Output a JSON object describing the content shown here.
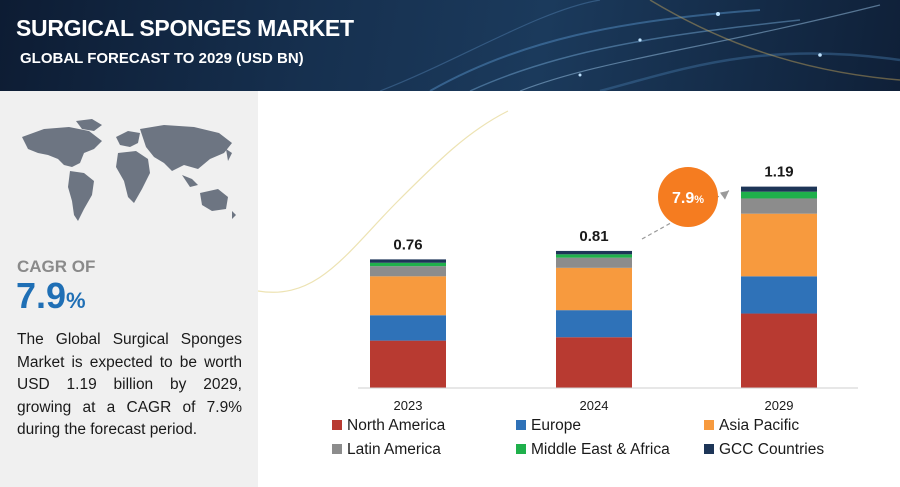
{
  "header": {
    "title": "SURGICAL SPONGES MARKET",
    "subtitle": "GLOBAL FORECAST TO 2029 (USD BN)"
  },
  "summary": {
    "cagr_label": "CAGR OF",
    "cagr_value": "7.9",
    "cagr_unit": "%",
    "description": "The Global Surgical Sponges Market is expected to be worth USD 1.19 billion by 2029, growing at a CAGR of 7.9% during the forecast period."
  },
  "chart_data": {
    "type": "bar",
    "stacked": true,
    "categories": [
      "2023",
      "2024",
      "2029"
    ],
    "totals": [
      "0.76",
      "0.81",
      "1.19"
    ],
    "series": [
      {
        "name": "North America",
        "color": "#b83a31",
        "values": [
          0.28,
          0.3,
          0.44
        ]
      },
      {
        "name": "Europe",
        "color": "#2f72b8",
        "values": [
          0.15,
          0.16,
          0.22
        ]
      },
      {
        "name": "Asia Pacific",
        "color": "#f79a3e",
        "values": [
          0.23,
          0.25,
          0.37
        ]
      },
      {
        "name": "Latin America",
        "color": "#8c8c8c",
        "values": [
          0.06,
          0.06,
          0.09
        ]
      },
      {
        "name": "Middle East & Africa",
        "color": "#1fb04b",
        "values": [
          0.02,
          0.02,
          0.04
        ]
      },
      {
        "name": "GCC Countries",
        "color": "#1d3557",
        "values": [
          0.02,
          0.02,
          0.03
        ]
      }
    ],
    "annotation": {
      "text": "7.9",
      "unit": "%",
      "color": "#f57c20"
    },
    "legend_position": "bottom",
    "grid": false,
    "ylim": [
      0,
      1.3
    ]
  }
}
